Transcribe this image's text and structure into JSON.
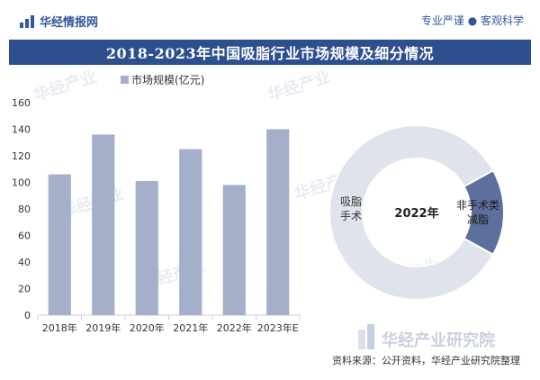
{
  "header": {
    "brand": "华经情报网",
    "slogan": "专业严谨 ● 客观科学"
  },
  "title": "2018-2023年中国吸脂行业市场规模及细分情况",
  "footer": {
    "watermark_brand": "华经产业研究院",
    "source": "资料来源：公开资料，华经产业研究院整理"
  },
  "colors": {
    "bar": "#a4b0c9",
    "donut_main": "#dfe3ec",
    "donut_accent": "#5d6f9c",
    "title_band": "#2d4f8e"
  },
  "chart_data": [
    {
      "type": "bar",
      "legend": "市场规模(亿元)",
      "categories": [
        "2018年",
        "2019年",
        "2020年",
        "2021年",
        "2022年",
        "2023年E"
      ],
      "values": [
        106,
        136,
        101,
        125,
        98,
        140
      ],
      "ylim": [
        0,
        160
      ],
      "yticks": [
        0,
        20,
        40,
        60,
        80,
        100,
        120,
        140,
        160
      ],
      "grid": false,
      "legend_position": "top-left"
    },
    {
      "type": "pie",
      "center_label": "2022年",
      "slices": [
        {
          "label": "吸脂手术",
          "value": 84
        },
        {
          "label": "非手术类减脂",
          "value": 16
        }
      ]
    }
  ]
}
